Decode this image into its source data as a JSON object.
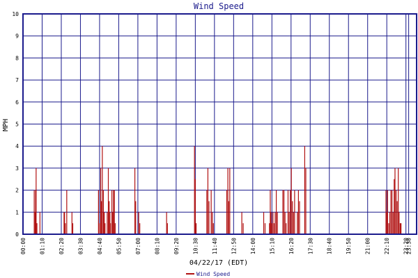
{
  "chart_data": {
    "type": "bar",
    "title": "Wind Speed",
    "ylabel": "MPH",
    "xlabel": "04/22/17 (EDT)",
    "ylim": [
      0,
      10
    ],
    "yticks": [
      "0",
      "1",
      "2",
      "3",
      "4",
      "5",
      "6",
      "7",
      "8",
      "9",
      "10"
    ],
    "xlim": [
      0,
      1439
    ],
    "xticks": [
      {
        "t": 0,
        "label": "00:00"
      },
      {
        "t": 70,
        "label": "01:10"
      },
      {
        "t": 140,
        "label": "02:20"
      },
      {
        "t": 210,
        "label": "03:30"
      },
      {
        "t": 280,
        "label": "04:40"
      },
      {
        "t": 350,
        "label": "05:50"
      },
      {
        "t": 420,
        "label": "07:00"
      },
      {
        "t": 490,
        "label": "08:10"
      },
      {
        "t": 560,
        "label": "09:20"
      },
      {
        "t": 630,
        "label": "10:30"
      },
      {
        "t": 700,
        "label": "11:40"
      },
      {
        "t": 770,
        "label": "12:50"
      },
      {
        "t": 840,
        "label": "14:00"
      },
      {
        "t": 910,
        "label": "15:10"
      },
      {
        "t": 980,
        "label": "16:20"
      },
      {
        "t": 1050,
        "label": "17:30"
      },
      {
        "t": 1120,
        "label": "18:40"
      },
      {
        "t": 1190,
        "label": "19:50"
      },
      {
        "t": 1260,
        "label": "21:00"
      },
      {
        "t": 1330,
        "label": "22:10"
      },
      {
        "t": 1400,
        "label": "23:20"
      },
      {
        "t": 1410,
        "label": "23:30"
      }
    ],
    "grid": true,
    "legend": "bottom-left",
    "series": [
      {
        "name": "Wind Speed",
        "color": "#b01010",
        "points": [
          [
            41,
            2
          ],
          [
            44,
            1
          ],
          [
            46,
            2
          ],
          [
            48,
            3
          ],
          [
            51,
            0.5
          ],
          [
            62,
            1
          ],
          [
            150,
            1
          ],
          [
            152,
            1
          ],
          [
            155,
            0.5
          ],
          [
            160,
            2
          ],
          [
            179,
            1
          ],
          [
            182,
            0.5
          ],
          [
            276,
            2
          ],
          [
            280,
            0.5
          ],
          [
            284,
            3
          ],
          [
            287,
            1.5
          ],
          [
            290,
            4
          ],
          [
            294,
            2
          ],
          [
            297,
            1
          ],
          [
            300,
            0.5
          ],
          [
            308,
            1
          ],
          [
            312,
            3
          ],
          [
            315,
            1.5
          ],
          [
            318,
            1
          ],
          [
            320,
            0.5
          ],
          [
            325,
            2
          ],
          [
            328,
            1
          ],
          [
            331,
            2
          ],
          [
            334,
            2
          ],
          [
            337,
            0.5
          ],
          [
            409,
            3
          ],
          [
            412,
            1.5
          ],
          [
            423,
            1
          ],
          [
            427,
            0.5
          ],
          [
            525,
            1
          ],
          [
            528,
            0.5
          ],
          [
            627,
            4
          ],
          [
            630,
            2.5
          ],
          [
            633,
            0.5
          ],
          [
            672,
            2
          ],
          [
            676,
            3
          ],
          [
            680,
            1.5
          ],
          [
            688,
            2
          ],
          [
            692,
            1
          ],
          [
            696,
            0.5
          ],
          [
            745,
            2
          ],
          [
            749,
            3
          ],
          [
            752,
            1.5
          ],
          [
            756,
            3
          ],
          [
            800,
            1
          ],
          [
            805,
            0.5
          ],
          [
            880,
            1
          ],
          [
            885,
            0.5
          ],
          [
            901,
            0.5
          ],
          [
            904,
            2
          ],
          [
            907,
            1
          ],
          [
            910,
            0.5
          ],
          [
            914,
            1
          ],
          [
            918,
            0.5
          ],
          [
            922,
            1
          ],
          [
            926,
            2
          ],
          [
            930,
            1
          ],
          [
            950,
            2
          ],
          [
            954,
            2
          ],
          [
            958,
            1
          ],
          [
            962,
            0.5
          ],
          [
            969,
            2
          ],
          [
            973,
            1
          ],
          [
            977,
            2
          ],
          [
            981,
            3
          ],
          [
            985,
            1.5
          ],
          [
            989,
            1
          ],
          [
            993,
            2
          ],
          [
            1003,
            1
          ],
          [
            1007,
            2
          ],
          [
            1011,
            1.5
          ],
          [
            1030,
            4
          ],
          [
            1034,
            3
          ],
          [
            1327,
            2
          ],
          [
            1330,
            1
          ],
          [
            1333,
            2
          ],
          [
            1337,
            0.5
          ],
          [
            1341,
            1
          ],
          [
            1345,
            2
          ],
          [
            1349,
            2
          ],
          [
            1353,
            1
          ],
          [
            1357,
            2.5
          ],
          [
            1360,
            3
          ],
          [
            1364,
            2
          ],
          [
            1368,
            1.5
          ],
          [
            1372,
            3
          ],
          [
            1375,
            1
          ],
          [
            1379,
            0.5
          ],
          [
            1382,
            0.5
          ]
        ]
      }
    ]
  }
}
